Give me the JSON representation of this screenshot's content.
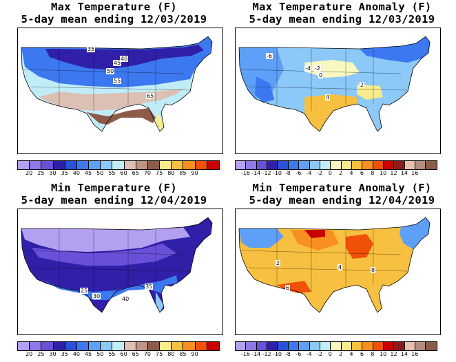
{
  "panels": [
    {
      "title1": "Max Temperature (F)",
      "title2": "5-day mean ending 12/03/2019",
      "scale": "temp",
      "labels": [
        "35",
        "40",
        "45",
        "50",
        "55",
        "65"
      ]
    },
    {
      "title1": "Max Temperature Anomaly (F)",
      "title2": "5-day mean ending 12/03/2019",
      "scale": "anom",
      "labels": [
        "-6",
        "-4",
        "-2",
        "0",
        "2",
        "4"
      ]
    },
    {
      "title1": "Min Temperature (F)",
      "title2": "5-day mean ending 12/04/2019",
      "scale": "temp",
      "labels": [
        "25",
        "30",
        "35",
        "40"
      ]
    },
    {
      "title1": "Min Temperature Anomaly (F)",
      "title2": "5-day mean ending 12/04/2019",
      "scale": "anom",
      "labels": [
        "2",
        "4",
        "6",
        "8"
      ]
    }
  ],
  "temp_scale": {
    "ticks": [
      "20",
      "25",
      "30",
      "35",
      "40",
      "45",
      "50",
      "55",
      "60",
      "65",
      "70",
      "75",
      "80",
      "85",
      "90"
    ],
    "colors": [
      "#b4a0f0",
      "#9078e8",
      "#6a50d8",
      "#3020a8",
      "#2850d8",
      "#3c78f0",
      "#5ea0f8",
      "#8cc8f8",
      "#c0ecf8",
      "#dcc0b4",
      "#c09484",
      "#8c5c48",
      "#f8ec8c",
      "#f8c040",
      "#f89020",
      "#f05008",
      "#c80000"
    ]
  },
  "anom_scale": {
    "ticks": [
      "-16",
      "-14",
      "-12",
      "-10",
      "-8",
      "-6",
      "-4",
      "-2",
      "0",
      "2",
      "4",
      "6",
      "8",
      "10",
      "12",
      "14",
      "16"
    ],
    "colors": [
      "#b4a0f0",
      "#9078e8",
      "#6a50d8",
      "#3020a8",
      "#2850d8",
      "#3c78f0",
      "#5ea0f8",
      "#8cc8f8",
      "#c0ecf8",
      "#f8f8c0",
      "#f8ec8c",
      "#f8c040",
      "#f89020",
      "#f05008",
      "#c80000",
      "#8c1c1c",
      "#e8c0b0",
      "#b48c84",
      "#8c5c48"
    ]
  }
}
